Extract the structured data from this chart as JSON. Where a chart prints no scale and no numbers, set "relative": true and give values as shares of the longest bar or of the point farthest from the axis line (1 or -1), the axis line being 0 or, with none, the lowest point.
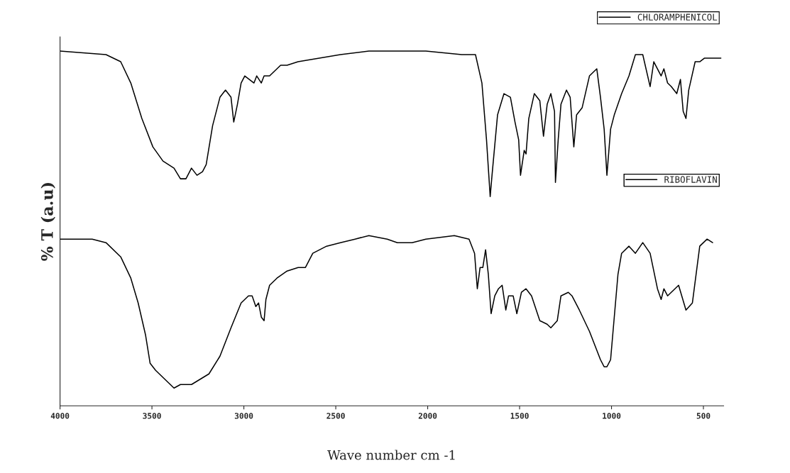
{
  "chart_data": {
    "type": "line",
    "xlabel": "Wave number cm -1",
    "ylabel": "% T (a.u)",
    "relative": true,
    "xlim": [
      4000,
      390
    ],
    "xticks": [
      4000,
      3500,
      3000,
      2500,
      2000,
      1500,
      1000,
      500
    ],
    "legend": "top right",
    "grid": false,
    "series": [
      {
        "name": "CHLORAMPHENICOL",
        "color": "#000000",
        "x": [
          4000,
          3750,
          3670,
          3615,
          3555,
          3495,
          3440,
          3380,
          3345,
          3315,
          3285,
          3255,
          3225,
          3205,
          3170,
          3130,
          3100,
          3070,
          3055,
          3035,
          3015,
          2995,
          2970,
          2945,
          2930,
          2905,
          2890,
          2860,
          2800,
          2765,
          2705,
          2475,
          2320,
          2010,
          1815,
          1740,
          1705,
          1680,
          1660,
          1650,
          1620,
          1585,
          1550,
          1525,
          1505,
          1495,
          1475,
          1465,
          1450,
          1420,
          1390,
          1370,
          1350,
          1330,
          1310,
          1305,
          1290,
          1275,
          1245,
          1225,
          1205,
          1190,
          1160,
          1120,
          1080,
          1060,
          1040,
          1025,
          1005,
          985,
          945,
          905,
          870,
          830,
          790,
          770,
          750,
          730,
          715,
          695,
          675,
          645,
          625,
          610,
          595,
          580,
          545,
          520,
          495,
          405
        ],
        "values": [
          1.0,
          0.99,
          0.97,
          0.91,
          0.81,
          0.73,
          0.69,
          0.67,
          0.64,
          0.64,
          0.67,
          0.65,
          0.66,
          0.68,
          0.79,
          0.87,
          0.89,
          0.87,
          0.8,
          0.85,
          0.91,
          0.93,
          0.92,
          0.91,
          0.93,
          0.91,
          0.93,
          0.93,
          0.96,
          0.96,
          0.97,
          0.99,
          1.0,
          1.0,
          0.99,
          0.99,
          0.91,
          0.75,
          0.59,
          0.65,
          0.82,
          0.88,
          0.87,
          0.8,
          0.75,
          0.65,
          0.72,
          0.71,
          0.81,
          0.88,
          0.86,
          0.76,
          0.85,
          0.88,
          0.83,
          0.63,
          0.75,
          0.85,
          0.89,
          0.87,
          0.73,
          0.82,
          0.84,
          0.93,
          0.95,
          0.87,
          0.78,
          0.65,
          0.78,
          0.82,
          0.88,
          0.93,
          0.99,
          0.99,
          0.9,
          0.97,
          0.95,
          0.93,
          0.95,
          0.91,
          0.9,
          0.88,
          0.92,
          0.83,
          0.81,
          0.89,
          0.97,
          0.97,
          0.98,
          0.98
        ]
      },
      {
        "name": "RIBOFLAVIN",
        "color": "#000000",
        "x": [
          4000,
          3825,
          3750,
          3670,
          3615,
          3575,
          3535,
          3510,
          3480,
          3420,
          3380,
          3345,
          3285,
          3190,
          3130,
          3070,
          3015,
          2975,
          2955,
          2935,
          2920,
          2905,
          2890,
          2880,
          2860,
          2820,
          2765,
          2705,
          2665,
          2625,
          2550,
          2475,
          2395,
          2320,
          2220,
          2165,
          2085,
          2010,
          1855,
          1775,
          1745,
          1730,
          1715,
          1700,
          1685,
          1670,
          1655,
          1635,
          1615,
          1595,
          1575,
          1560,
          1535,
          1515,
          1490,
          1465,
          1435,
          1390,
          1350,
          1330,
          1295,
          1275,
          1235,
          1215,
          1175,
          1120,
          1060,
          1040,
          1025,
          1005,
          965,
          945,
          905,
          870,
          830,
          790,
          750,
          730,
          715,
          695,
          635,
          595,
          560,
          520,
          480,
          450
        ],
        "values": [
          0.47,
          0.47,
          0.46,
          0.42,
          0.36,
          0.29,
          0.2,
          0.12,
          0.1,
          0.07,
          0.05,
          0.06,
          0.06,
          0.09,
          0.14,
          0.22,
          0.29,
          0.31,
          0.31,
          0.28,
          0.29,
          0.25,
          0.24,
          0.3,
          0.34,
          0.36,
          0.38,
          0.39,
          0.39,
          0.43,
          0.45,
          0.46,
          0.47,
          0.48,
          0.47,
          0.46,
          0.46,
          0.47,
          0.48,
          0.47,
          0.43,
          0.33,
          0.39,
          0.39,
          0.44,
          0.37,
          0.26,
          0.31,
          0.33,
          0.34,
          0.27,
          0.31,
          0.31,
          0.26,
          0.32,
          0.33,
          0.31,
          0.24,
          0.23,
          0.22,
          0.24,
          0.31,
          0.32,
          0.31,
          0.27,
          0.21,
          0.13,
          0.11,
          0.11,
          0.13,
          0.37,
          0.43,
          0.45,
          0.43,
          0.46,
          0.43,
          0.33,
          0.3,
          0.33,
          0.31,
          0.34,
          0.27,
          0.29,
          0.45,
          0.47,
          0.46
        ]
      }
    ]
  }
}
